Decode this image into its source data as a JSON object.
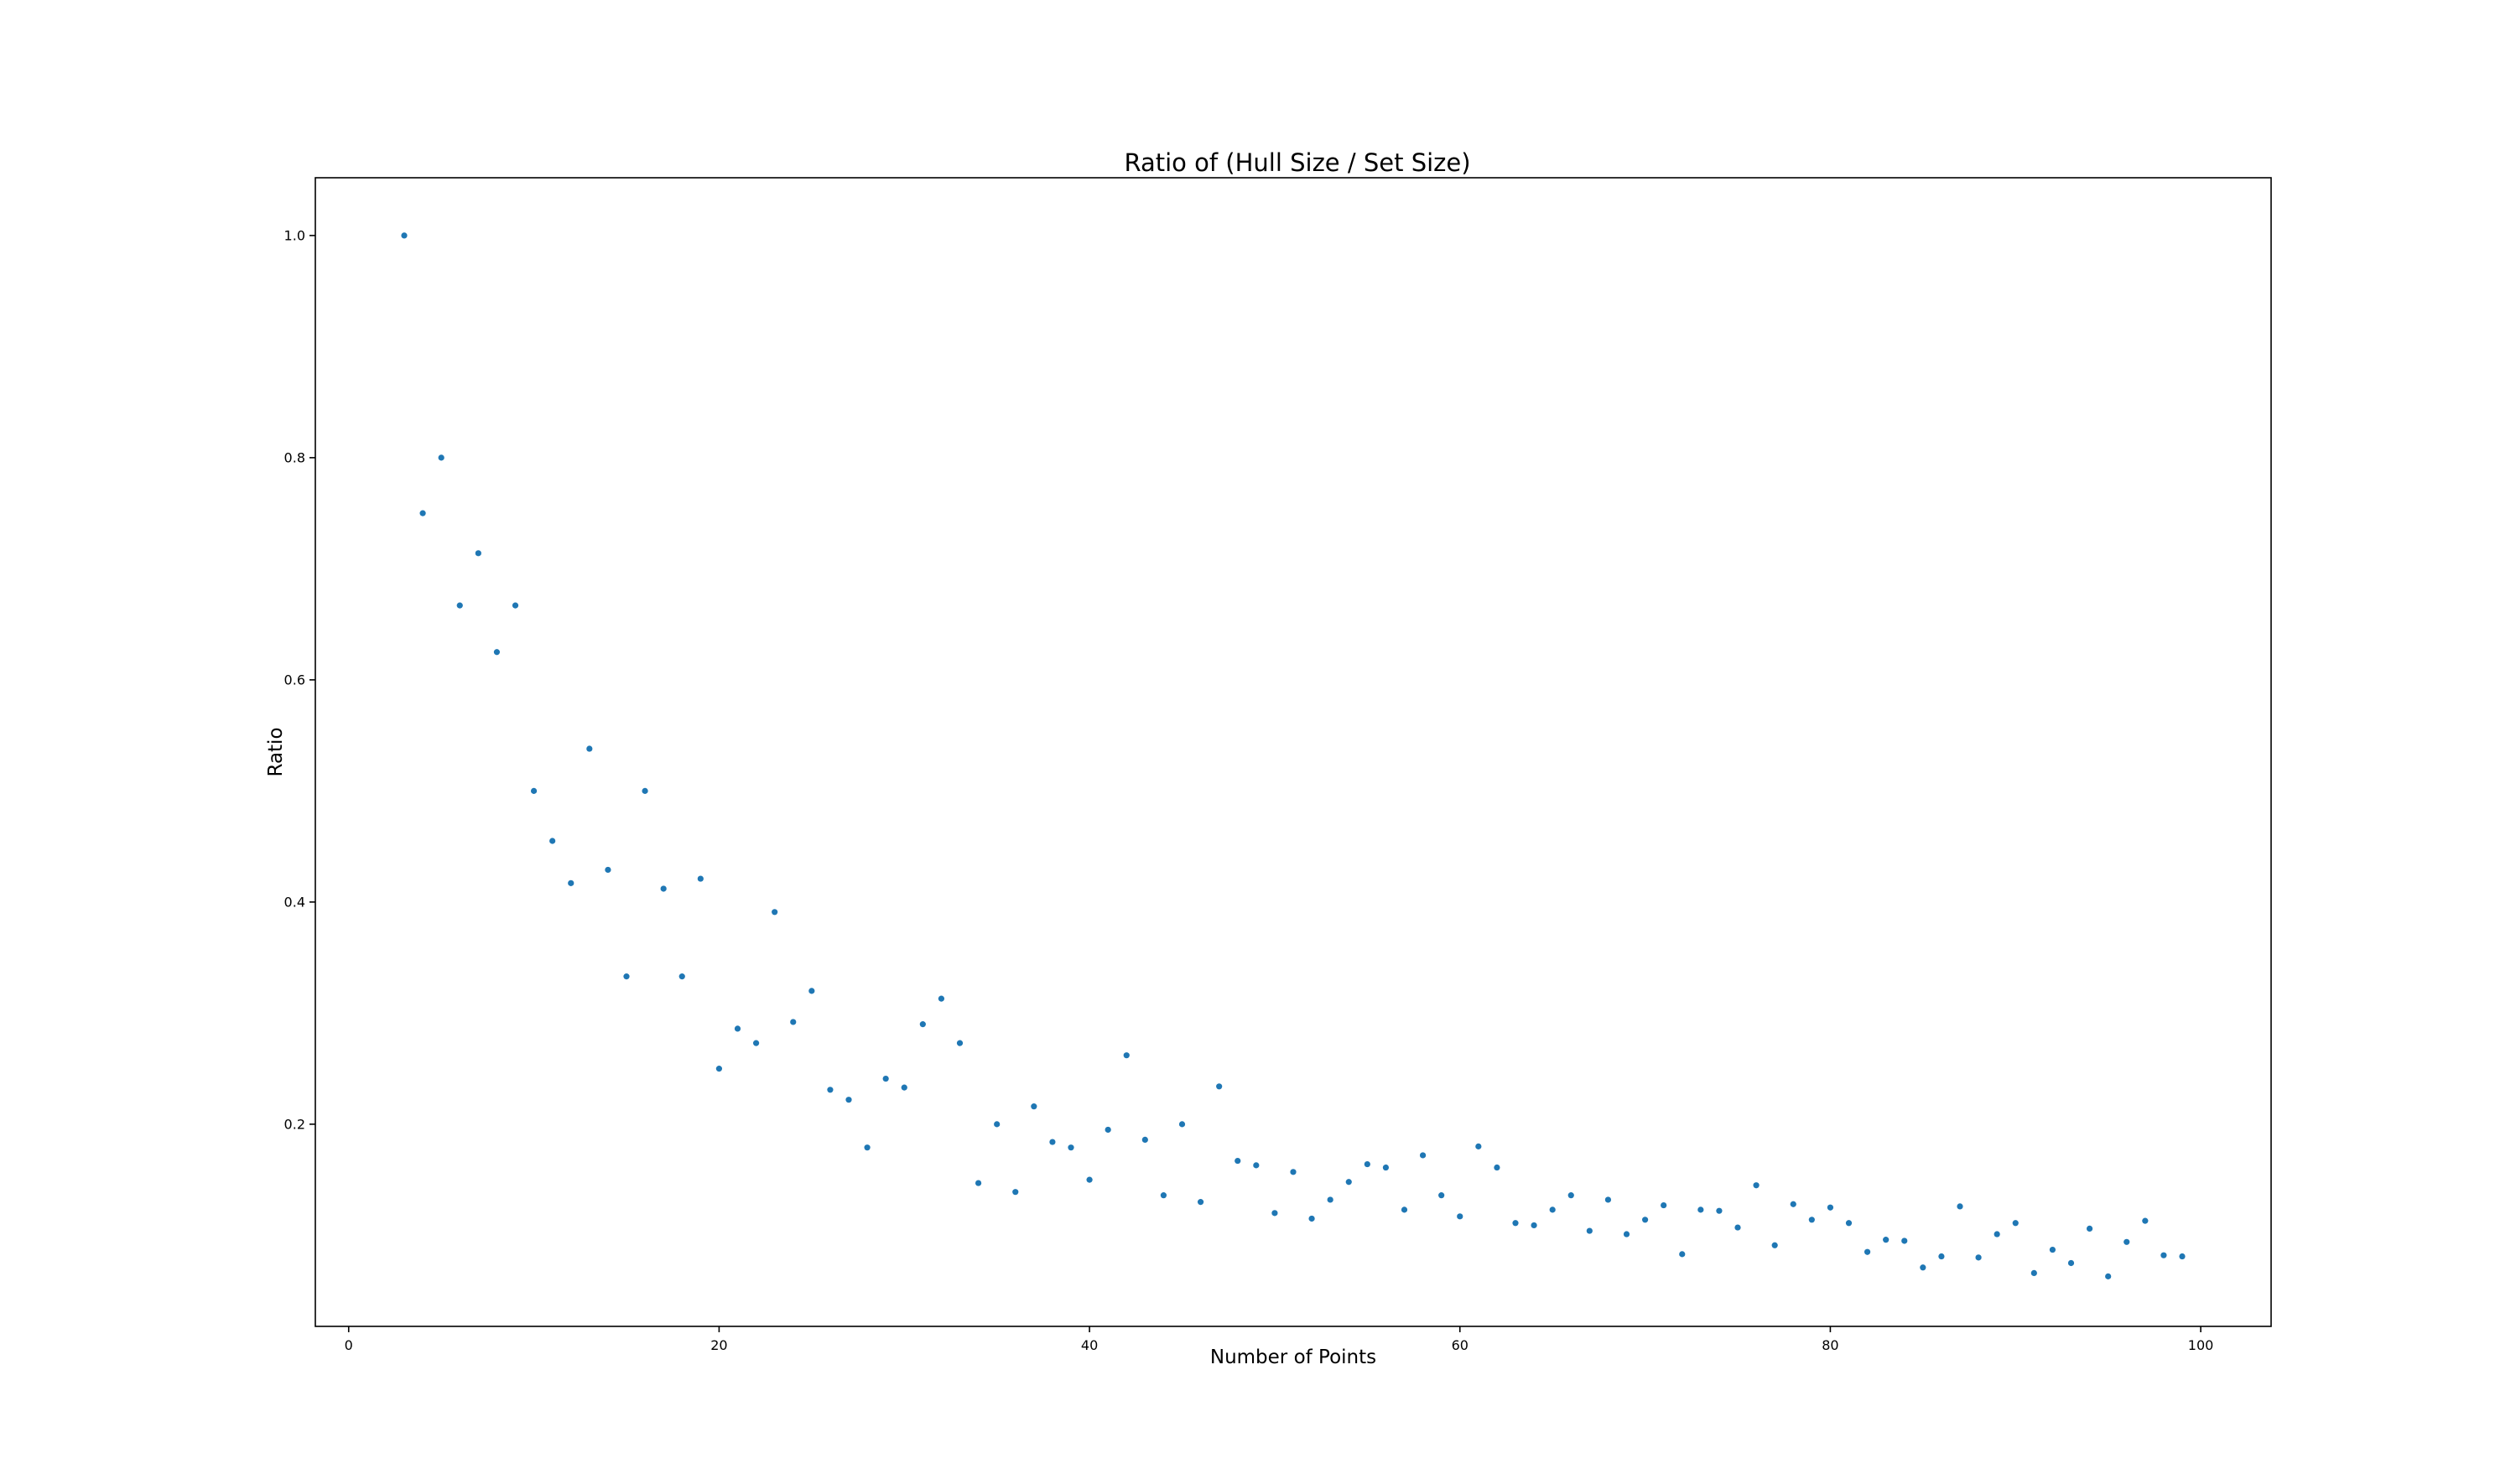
{
  "chart_data": {
    "type": "scatter",
    "title": "Ratio of (Hull Size / Set Size)",
    "xlabel": "Number of Points",
    "ylabel": "Ratio",
    "xlim": [
      -1.8,
      103.8
    ],
    "ylim": [
      0.018,
      1.052
    ],
    "xticks": [
      0,
      20,
      40,
      60,
      80,
      100
    ],
    "xtick_labels": [
      "0",
      "20",
      "40",
      "60",
      "80",
      "100"
    ],
    "yticks": [
      0.2,
      0.4,
      0.6,
      0.8,
      1.0
    ],
    "ytick_labels": [
      "0.2",
      "0.4",
      "0.6",
      "0.8",
      "1.0"
    ],
    "grid": false,
    "legend": "none",
    "marker_color": "#1f77b4",
    "series": [
      {
        "x": [
          3,
          4,
          5,
          6,
          7,
          8,
          9,
          10,
          11,
          12,
          13,
          14,
          15,
          16,
          17,
          18,
          19,
          20,
          21,
          22,
          23,
          24,
          25,
          26,
          27,
          28,
          29,
          30,
          31,
          32,
          33,
          34,
          35,
          36,
          37,
          38,
          39,
          40,
          41,
          42,
          43,
          44,
          45,
          46,
          47,
          48,
          49,
          50,
          51,
          52,
          53,
          54,
          55,
          56,
          57,
          58,
          59,
          60,
          61,
          62,
          63,
          64,
          65,
          66,
          67,
          68,
          69,
          70,
          71,
          72,
          73,
          74,
          75,
          76,
          77,
          78,
          79,
          80,
          81,
          82,
          83,
          84,
          85,
          86,
          87,
          88,
          89,
          90,
          91,
          92,
          93,
          94,
          95,
          96,
          97,
          98,
          99
        ],
        "y": [
          1.0,
          0.75,
          0.8,
          0.667,
          0.714,
          0.625,
          0.667,
          0.5,
          0.455,
          0.417,
          0.538,
          0.429,
          0.333,
          0.5,
          0.412,
          0.333,
          0.421,
          0.25,
          0.286,
          0.273,
          0.391,
          0.292,
          0.32,
          0.231,
          0.222,
          0.179,
          0.241,
          0.233,
          0.29,
          0.313,
          0.273,
          0.147,
          0.2,
          0.139,
          0.216,
          0.184,
          0.179,
          0.15,
          0.195,
          0.262,
          0.186,
          0.136,
          0.2,
          0.13,
          0.234,
          0.167,
          0.163,
          0.12,
          0.157,
          0.115,
          0.132,
          0.148,
          0.164,
          0.161,
          0.123,
          0.172,
          0.136,
          0.117,
          0.18,
          0.161,
          0.111,
          0.109,
          0.123,
          0.136,
          0.104,
          0.132,
          0.101,
          0.114,
          0.127,
          0.083,
          0.123,
          0.122,
          0.107,
          0.145,
          0.091,
          0.128,
          0.114,
          0.125,
          0.111,
          0.085,
          0.096,
          0.095,
          0.071,
          0.081,
          0.126,
          0.08,
          0.101,
          0.111,
          0.066,
          0.087,
          0.075,
          0.106,
          0.063,
          0.094,
          0.113,
          0.082,
          0.081
        ]
      }
    ]
  }
}
